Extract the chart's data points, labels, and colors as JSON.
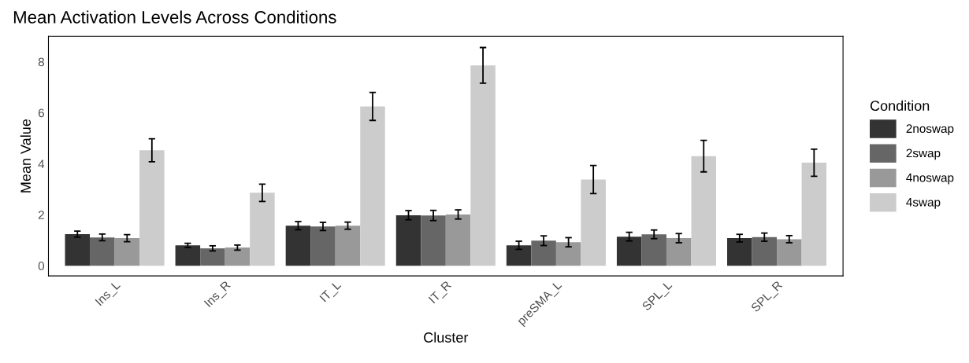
{
  "chart_data": {
    "type": "bar",
    "title": "Mean Activation Levels Across Conditions",
    "xlabel": "Cluster",
    "ylabel": "Mean Value",
    "legend_title": "Condition",
    "legend": "right",
    "categories": [
      "Ins_L",
      "Ins_R",
      "IT_L",
      "IT_R",
      "preSMA_L",
      "SPL_L",
      "SPL_R"
    ],
    "series": [
      {
        "name": "2noswap",
        "color": "#333333",
        "values": [
          1.24,
          0.8,
          1.57,
          1.98,
          0.8,
          1.14,
          1.08
        ],
        "errors": [
          0.12,
          0.08,
          0.16,
          0.18,
          0.16,
          0.17,
          0.15
        ]
      },
      {
        "name": "2swap",
        "color": "#666666",
        "values": [
          1.11,
          0.68,
          1.54,
          1.97,
          0.98,
          1.23,
          1.12
        ],
        "errors": [
          0.13,
          0.1,
          0.16,
          0.2,
          0.19,
          0.17,
          0.16
        ]
      },
      {
        "name": "4noswap",
        "color": "#999999",
        "values": [
          1.08,
          0.71,
          1.57,
          2.01,
          0.92,
          1.08,
          1.04
        ],
        "errors": [
          0.14,
          0.1,
          0.14,
          0.18,
          0.18,
          0.18,
          0.14
        ]
      },
      {
        "name": "4swap",
        "color": "#cccccc",
        "values": [
          4.53,
          2.86,
          6.25,
          7.86,
          3.38,
          4.3,
          4.04
        ],
        "errors": [
          0.45,
          0.34,
          0.55,
          0.7,
          0.55,
          0.62,
          0.53
        ]
      }
    ],
    "ylim": [
      -0.4,
      9.0
    ],
    "yticks": [
      0,
      2,
      4,
      6,
      8
    ],
    "grid": false
  }
}
